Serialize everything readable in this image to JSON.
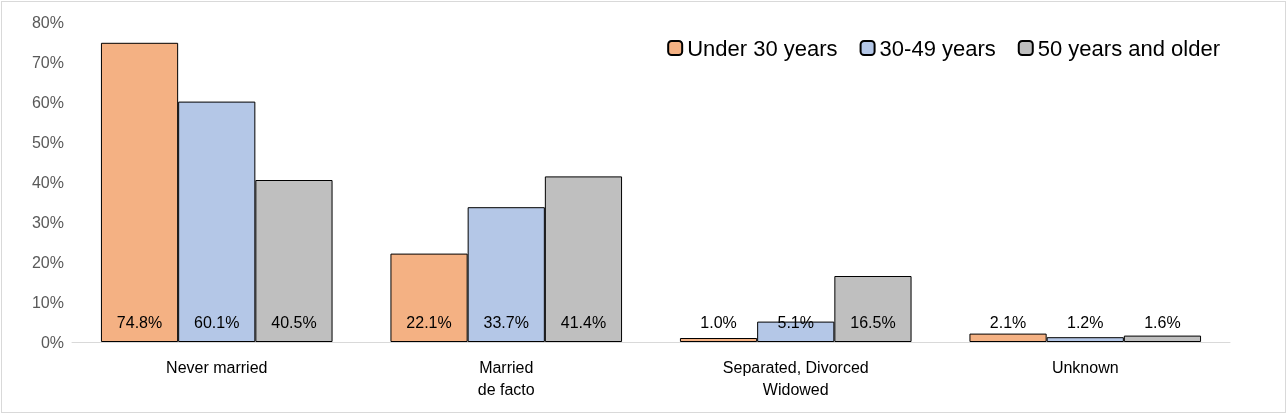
{
  "chart_data": {
    "type": "bar",
    "categories": [
      "Never married",
      "Married\nde facto",
      "Separated, Divorced\nWidowed",
      "Unknown"
    ],
    "series": [
      {
        "name": "Under 30 years",
        "color": "#f4b183",
        "values": [
          74.8,
          22.1,
          1.0,
          2.1
        ],
        "value_labels": [
          "74.8%",
          "22.1%",
          "1.0%",
          "2.1%"
        ]
      },
      {
        "name": "30-49 years",
        "color": "#b4c7e7",
        "values": [
          60.1,
          33.7,
          5.1,
          1.2
        ],
        "value_labels": [
          "60.1%",
          "33.7%",
          "5.1%",
          "1.2%"
        ]
      },
      {
        "name": "50 years and older",
        "color": "#bfbfbf",
        "values": [
          40.5,
          41.4,
          16.5,
          1.6
        ],
        "value_labels": [
          "40.5%",
          "41.4%",
          "16.5%",
          "1.6%"
        ]
      }
    ],
    "ylim": [
      0,
      80
    ],
    "yticks": [
      {
        "value": 0,
        "label": "0%"
      },
      {
        "value": 10,
        "label": "10%"
      },
      {
        "value": 20,
        "label": "20%"
      },
      {
        "value": 30,
        "label": "30%"
      },
      {
        "value": 40,
        "label": "40%"
      },
      {
        "value": 50,
        "label": "50%"
      },
      {
        "value": 60,
        "label": "60%"
      },
      {
        "value": 70,
        "label": "70%"
      },
      {
        "value": 80,
        "label": "80%"
      }
    ],
    "grid": false,
    "legend": "top right"
  }
}
